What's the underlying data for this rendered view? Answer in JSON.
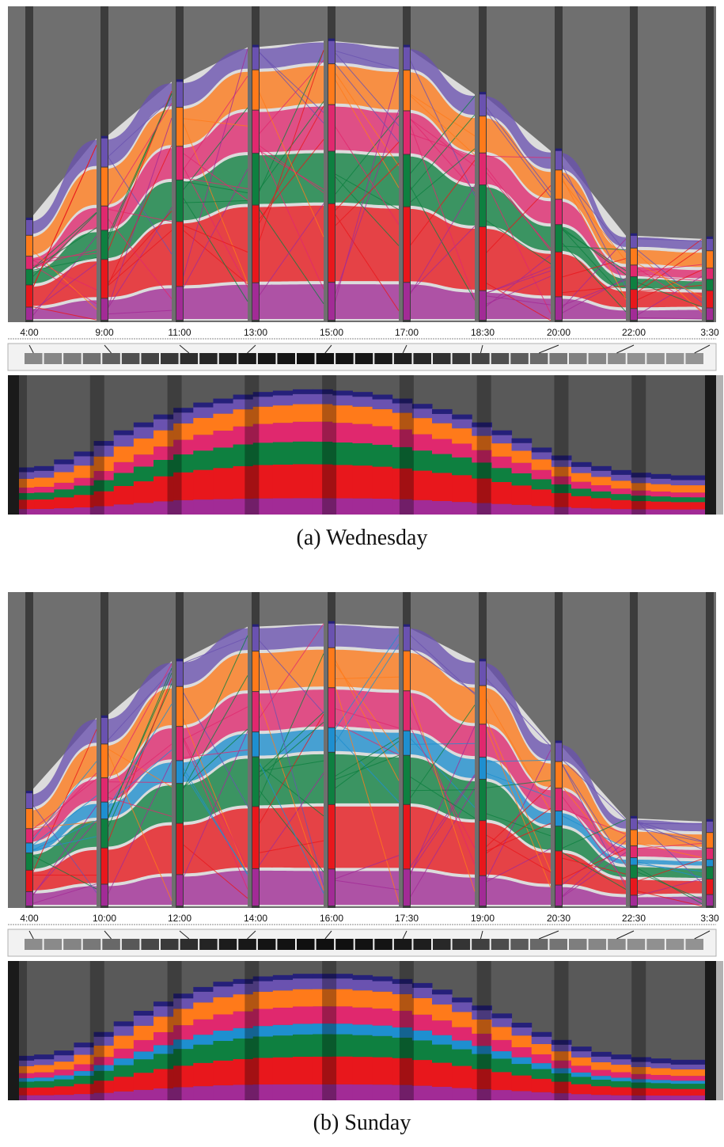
{
  "figure": {
    "colors": {
      "axis": "#3c3c3c",
      "gap": "#6f6f6f",
      "purple": "#6a52b0",
      "yellow": "#f6e22a",
      "orange": "#ff7a1a",
      "crimson": "#e0286e",
      "blue": "#1e8fd0",
      "green": "#0e8040",
      "red": "#e8171c",
      "violet": "#a22b96",
      "navy": "#25207a"
    },
    "panels": [
      {
        "caption": "(a)  Wednesday",
        "times": [
          "4:00",
          "9:00",
          "11:00",
          "13:00",
          "15:00",
          "17:00",
          "18:30",
          "20:00",
          "22:00",
          "3:30"
        ],
        "chart_data": {
          "type": "area",
          "x": [
            "4:00",
            "9:00",
            "11:00",
            "13:00",
            "15:00",
            "17:00",
            "18:30",
            "20:00",
            "22:00",
            "3:30"
          ],
          "series": [
            {
              "color": "violet",
              "values": [
                0.1,
                0.09,
                0.13,
                0.13,
                0.13,
                0.13,
                0.12,
                0.12,
                0.11,
                0.12
              ]
            },
            {
              "color": "red",
              "values": [
                0.17,
                0.16,
                0.25,
                0.27,
                0.27,
                0.26,
                0.26,
                0.23,
                0.18,
                0.17
              ]
            },
            {
              "color": "green",
              "values": [
                0.12,
                0.12,
                0.16,
                0.18,
                0.18,
                0.18,
                0.17,
                0.14,
                0.12,
                0.11
              ]
            },
            {
              "color": "crimson",
              "values": [
                0.1,
                0.1,
                0.13,
                0.15,
                0.16,
                0.15,
                0.13,
                0.13,
                0.11,
                0.11
              ]
            },
            {
              "color": "orange",
              "values": [
                0.16,
                0.16,
                0.15,
                0.14,
                0.14,
                0.14,
                0.15,
                0.15,
                0.16,
                0.17
              ]
            },
            {
              "color": "purple",
              "values": [
                0.12,
                0.12,
                0.1,
                0.08,
                0.08,
                0.08,
                0.09,
                0.1,
                0.12,
                0.12
              ]
            }
          ],
          "column_heights": [
            0.32,
            0.58,
            0.76,
            0.87,
            0.89,
            0.87,
            0.72,
            0.54,
            0.27,
            0.26
          ],
          "strip_cells": [
            0.32,
            0.33,
            0.38,
            0.44,
            0.52,
            0.6,
            0.66,
            0.72,
            0.77,
            0.81,
            0.84,
            0.87,
            0.89,
            0.9,
            0.91,
            0.91,
            0.9,
            0.89,
            0.87,
            0.84,
            0.8,
            0.76,
            0.72,
            0.66,
            0.6,
            0.54,
            0.47,
            0.41,
            0.36,
            0.33,
            0.3,
            0.28,
            0.27,
            0.26,
            0.26
          ],
          "ylim": [
            0,
            1
          ]
        }
      },
      {
        "caption": "(b)  Sunday",
        "times": [
          "4:00",
          "10:00",
          "12:00",
          "14:00",
          "16:00",
          "17:30",
          "19:00",
          "20:30",
          "22:30",
          "3:30"
        ],
        "chart_data": {
          "type": "area",
          "x": [
            "4:00",
            "10:00",
            "12:00",
            "14:00",
            "16:00",
            "17:30",
            "19:00",
            "20:30",
            "22:30",
            "3:30"
          ],
          "series": [
            {
              "color": "violet",
              "values": [
                0.1,
                0.09,
                0.11,
                0.12,
                0.12,
                0.12,
                0.11,
                0.11,
                0.1,
                0.11
              ]
            },
            {
              "color": "red",
              "values": [
                0.15,
                0.15,
                0.18,
                0.2,
                0.21,
                0.21,
                0.2,
                0.18,
                0.16,
                0.15
              ]
            },
            {
              "color": "green",
              "values": [
                0.12,
                0.12,
                0.14,
                0.16,
                0.17,
                0.16,
                0.15,
                0.13,
                0.12,
                0.12
              ]
            },
            {
              "color": "blue",
              "values": [
                0.07,
                0.07,
                0.08,
                0.08,
                0.08,
                0.08,
                0.08,
                0.08,
                0.07,
                0.07
              ]
            },
            {
              "color": "crimson",
              "values": [
                0.1,
                0.1,
                0.12,
                0.13,
                0.13,
                0.13,
                0.12,
                0.12,
                0.11,
                0.11
              ]
            },
            {
              "color": "orange",
              "values": [
                0.14,
                0.14,
                0.14,
                0.13,
                0.13,
                0.13,
                0.14,
                0.14,
                0.15,
                0.15
              ]
            },
            {
              "color": "purple",
              "values": [
                0.11,
                0.11,
                0.09,
                0.08,
                0.08,
                0.08,
                0.09,
                0.1,
                0.11,
                0.11
              ]
            }
          ],
          "column_heights": [
            0.36,
            0.6,
            0.78,
            0.89,
            0.9,
            0.89,
            0.78,
            0.52,
            0.28,
            0.27
          ],
          "strip_cells": [
            0.3,
            0.31,
            0.34,
            0.4,
            0.48,
            0.56,
            0.64,
            0.71,
            0.77,
            0.82,
            0.86,
            0.88,
            0.9,
            0.91,
            0.92,
            0.92,
            0.92,
            0.91,
            0.9,
            0.88,
            0.85,
            0.8,
            0.74,
            0.68,
            0.62,
            0.55,
            0.48,
            0.42,
            0.37,
            0.33,
            0.31,
            0.29,
            0.28,
            0.27,
            0.27
          ],
          "ylim": [
            0,
            1
          ]
        }
      }
    ]
  }
}
